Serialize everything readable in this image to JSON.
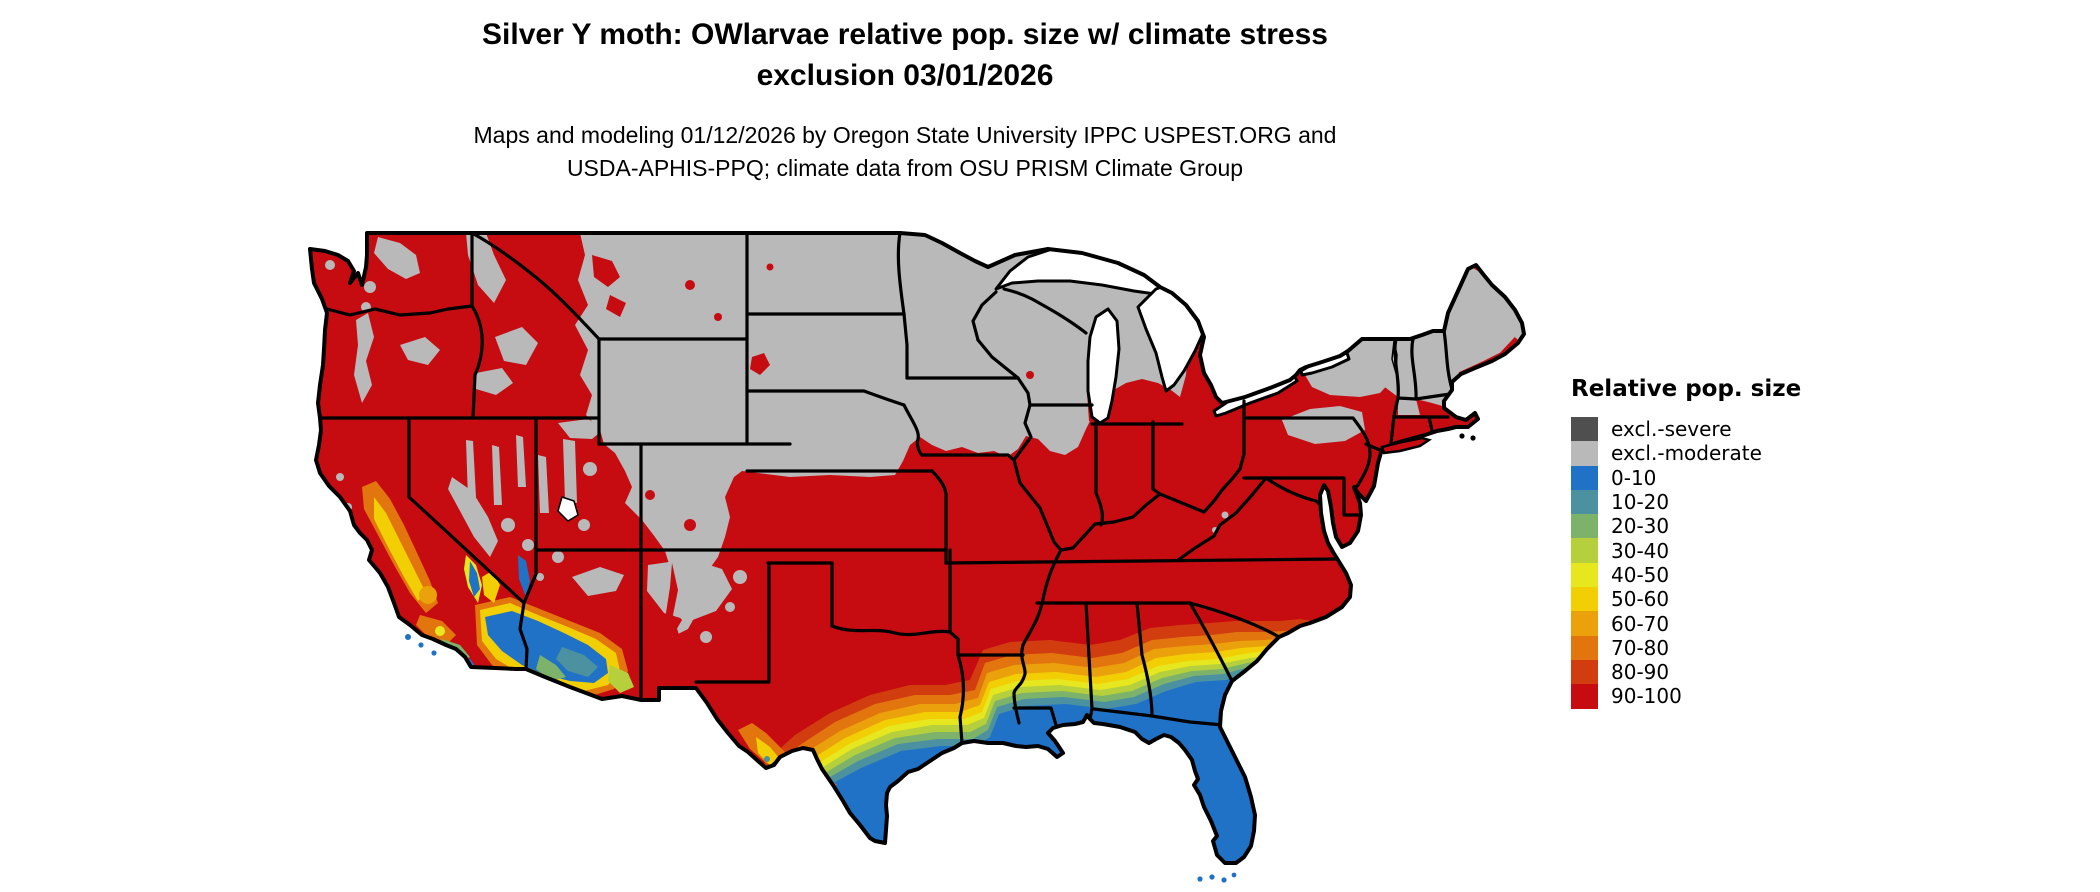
{
  "header": {
    "title_line1": "Silver Y moth: OWlarvae relative pop. size w/ climate stress",
    "title_line2": "exclusion 03/01/2026",
    "subtitle_line1": "Maps and modeling 01/12/2026 by Oregon State University IPPC USPEST.ORG and",
    "subtitle_line2": "USDA-APHIS-PPQ; climate data from OSU PRISM Climate Group"
  },
  "legend": {
    "title": "Relative pop. size",
    "items": [
      {
        "label": "excl.-severe",
        "color": "#4F4F4F",
        "key": "sev"
      },
      {
        "label": "excl.-moderate",
        "color": "#B9B9B9",
        "key": "mod"
      },
      {
        "label": "0-10",
        "color": "#2072C6",
        "key": "b0"
      },
      {
        "label": "10-20",
        "color": "#4C91A0",
        "key": "t10"
      },
      {
        "label": "20-30",
        "color": "#7DB26A",
        "key": "g20"
      },
      {
        "label": "30-40",
        "color": "#B5D03C",
        "key": "yg30"
      },
      {
        "label": "40-50",
        "color": "#E6E71F",
        "key": "y40"
      },
      {
        "label": "50-60",
        "color": "#F2CF05",
        "key": "gold50"
      },
      {
        "label": "60-70",
        "color": "#EBA10B",
        "key": "amb60"
      },
      {
        "label": "70-80",
        "color": "#E2750D",
        "key": "org70"
      },
      {
        "label": "80-90",
        "color": "#D23D10",
        "key": "ro80"
      },
      {
        "label": "90-100",
        "color": "#C60B11",
        "key": "red90"
      }
    ]
  },
  "map": {
    "region": "Contiguous United States",
    "border_color": "#000000",
    "background_color": "#FFFFFF"
  }
}
